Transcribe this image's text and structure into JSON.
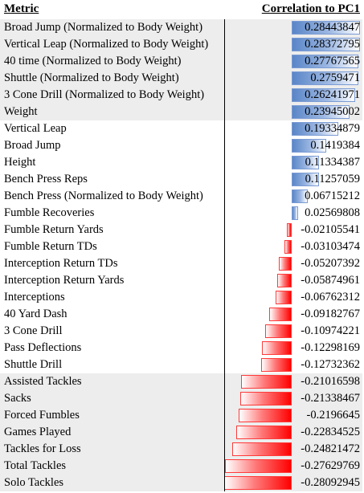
{
  "header": {
    "metric_label": "Metric",
    "correlation_label": "Correlation to PC1"
  },
  "colors": {
    "positive_bar": "#5a86c7",
    "negative_bar": "#ff0000",
    "highlight_row": "#ededed"
  },
  "rows": [
    {
      "metric": "Broad Jump (Normalized to Body Weight)",
      "value": "0.28443847",
      "highlight": true
    },
    {
      "metric": "Vertical Leap (Normalized to Body Weight)",
      "value": "0.28372795",
      "highlight": true
    },
    {
      "metric": "40 time (Normalized to Body Weight)",
      "value": "0.27767565",
      "highlight": true
    },
    {
      "metric": "Shuttle (Normalized to Body Weight)",
      "value": "0.2759471",
      "highlight": true
    },
    {
      "metric": "3 Cone Drill (Normalized to Body Weight)",
      "value": "0.26241971",
      "highlight": true
    },
    {
      "metric": "Weight",
      "value": "0.23945002",
      "highlight": true
    },
    {
      "metric": "Vertical Leap",
      "value": "0.19334879",
      "highlight": false
    },
    {
      "metric": "Broad Jump",
      "value": "0.1419384",
      "highlight": false
    },
    {
      "metric": "Height",
      "value": "0.11334387",
      "highlight": false
    },
    {
      "metric": "Bench Press Reps",
      "value": "0.11257059",
      "highlight": false
    },
    {
      "metric": "Bench Press (Normalized to Body Weight)",
      "value": "0.06715212",
      "highlight": false
    },
    {
      "metric": "Fumble Recoveries",
      "value": "0.02569808",
      "highlight": false
    },
    {
      "metric": "Fumble Return Yards",
      "value": "-0.02105541",
      "highlight": false
    },
    {
      "metric": "Fumble Return TDs",
      "value": "-0.03103474",
      "highlight": false
    },
    {
      "metric": "Interception Return TDs",
      "value": "-0.05207392",
      "highlight": false
    },
    {
      "metric": "Interception Return Yards",
      "value": "-0.05874961",
      "highlight": false
    },
    {
      "metric": "Interceptions",
      "value": "-0.06762312",
      "highlight": false
    },
    {
      "metric": "40 Yard Dash",
      "value": "-0.09182767",
      "highlight": false
    },
    {
      "metric": "3 Cone Drill",
      "value": "-0.10974221",
      "highlight": false
    },
    {
      "metric": "Pass Deflections",
      "value": "-0.12298169",
      "highlight": false
    },
    {
      "metric": "Shuttle Drill",
      "value": "-0.12732362",
      "highlight": false
    },
    {
      "metric": "Assisted Tackles",
      "value": "-0.21016598",
      "highlight": true
    },
    {
      "metric": "Sacks",
      "value": "-0.21338467",
      "highlight": true
    },
    {
      "metric": "Forced Fumbles",
      "value": "-0.2196645",
      "highlight": true
    },
    {
      "metric": "Games Played",
      "value": "-0.22834525",
      "highlight": true
    },
    {
      "metric": "Tackles for Loss",
      "value": "-0.24821472",
      "highlight": true
    },
    {
      "metric": "Total Tackles",
      "value": "-0.27629769",
      "highlight": true
    },
    {
      "metric": "Solo Tackles",
      "value": "-0.28092945",
      "highlight": true
    }
  ]
}
